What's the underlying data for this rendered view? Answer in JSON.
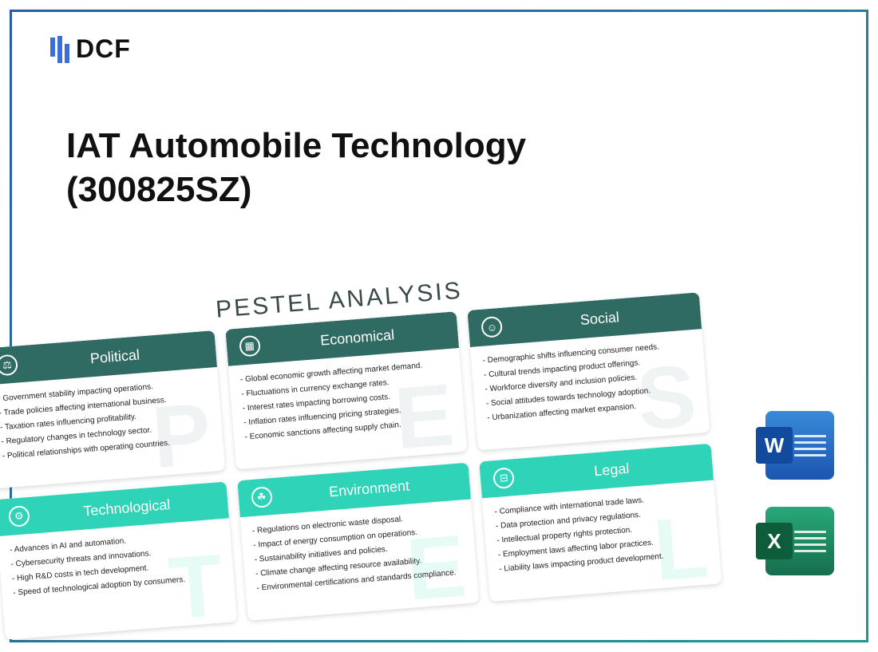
{
  "logo": {
    "text": "DCF"
  },
  "title_line1": "IAT Automobile Technology",
  "title_line2": "(300825SZ)",
  "pestel": {
    "heading": "PESTEL ANALYSIS",
    "cards": [
      {
        "title": "Political",
        "letter": "P",
        "icon": "⚖",
        "items": [
          "Government stability impacting operations.",
          "Trade policies affecting international business.",
          "Taxation rates influencing profitability.",
          "Regulatory changes in technology sector.",
          "Political relationships with operating countries."
        ]
      },
      {
        "title": "Economical",
        "letter": "E",
        "icon": "▦",
        "items": [
          "Global economic growth affecting market demand.",
          "Fluctuations in currency exchange rates.",
          "Interest rates impacting borrowing costs.",
          "Inflation rates influencing pricing strategies.",
          "Economic sanctions affecting supply chain."
        ]
      },
      {
        "title": "Social",
        "letter": "S",
        "icon": "☺",
        "items": [
          "Demographic shifts influencing consumer needs.",
          "Cultural trends impacting product offerings.",
          "Workforce diversity and inclusion policies.",
          "Social attitudes towards technology adoption.",
          "Urbanization affecting market expansion."
        ]
      },
      {
        "title": "Technological",
        "letter": "T",
        "icon": "⚙",
        "items": [
          "Advances in AI and automation.",
          "Cybersecurity threats and innovations.",
          "High R&D costs in tech development.",
          "Speed of technological adoption by consumers."
        ]
      },
      {
        "title": "Environment",
        "letter": "E",
        "icon": "☘",
        "items": [
          "Regulations on electronic waste disposal.",
          "Impact of energy consumption on operations.",
          "Sustainability initiatives and policies.",
          "Climate change affecting resource availability.",
          "Environmental certifications and standards compliance."
        ]
      },
      {
        "title": "Legal",
        "letter": "L",
        "icon": "⊟",
        "items": [
          "Compliance with international trade laws.",
          "Data protection and privacy regulations.",
          "Intellectual property rights protection.",
          "Employment laws affecting labor practices.",
          "Liability laws impacting product development."
        ]
      }
    ]
  },
  "apps": {
    "word": {
      "letter": "W",
      "name": "word-icon"
    },
    "excel": {
      "letter": "X",
      "name": "excel-icon"
    }
  }
}
